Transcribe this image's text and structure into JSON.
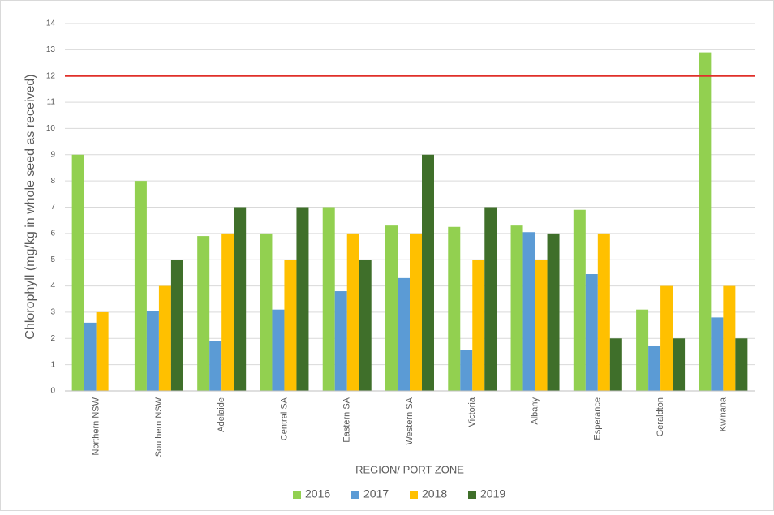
{
  "chart_data": {
    "type": "bar",
    "x_label": "REGION/ PORT ZONE",
    "y_label": "Chlorophyll (mg/kg in whole seed  as received)",
    "categories": [
      "Northern NSW",
      "Southern NSW",
      "Adelaide",
      "Central SA",
      "Eastern SA",
      "Western SA",
      "Victoria",
      "Albany",
      "Esperance",
      "Geraldton",
      "Kwinana"
    ],
    "series": [
      {
        "name": "2016",
        "color": "#92d050",
        "values": [
          9,
          8,
          5.9,
          6,
          7,
          6.3,
          6.25,
          6.3,
          6.9,
          3.1,
          12.9
        ]
      },
      {
        "name": "2017",
        "color": "#5b9bd5",
        "values": [
          2.6,
          3.05,
          1.9,
          3.1,
          3.8,
          4.3,
          1.55,
          6.05,
          4.45,
          1.7,
          2.8
        ]
      },
      {
        "name": "2018",
        "color": "#ffc000",
        "values": [
          3,
          4,
          6,
          5,
          6,
          6,
          5,
          5,
          6,
          4,
          4
        ]
      },
      {
        "name": "2019",
        "color": "#3f6f2a",
        "values": [
          null,
          5,
          7,
          7,
          5,
          9,
          7,
          6,
          2,
          2,
          2
        ]
      }
    ],
    "reference_line": {
      "value": 12,
      "color": "#e0302a"
    },
    "ylim": [
      0,
      14
    ],
    "yticks": [
      0,
      1,
      2,
      3,
      4,
      5,
      6,
      7,
      8,
      9,
      10,
      11,
      12,
      13,
      14
    ],
    "grid": true,
    "legend": "bottom"
  }
}
